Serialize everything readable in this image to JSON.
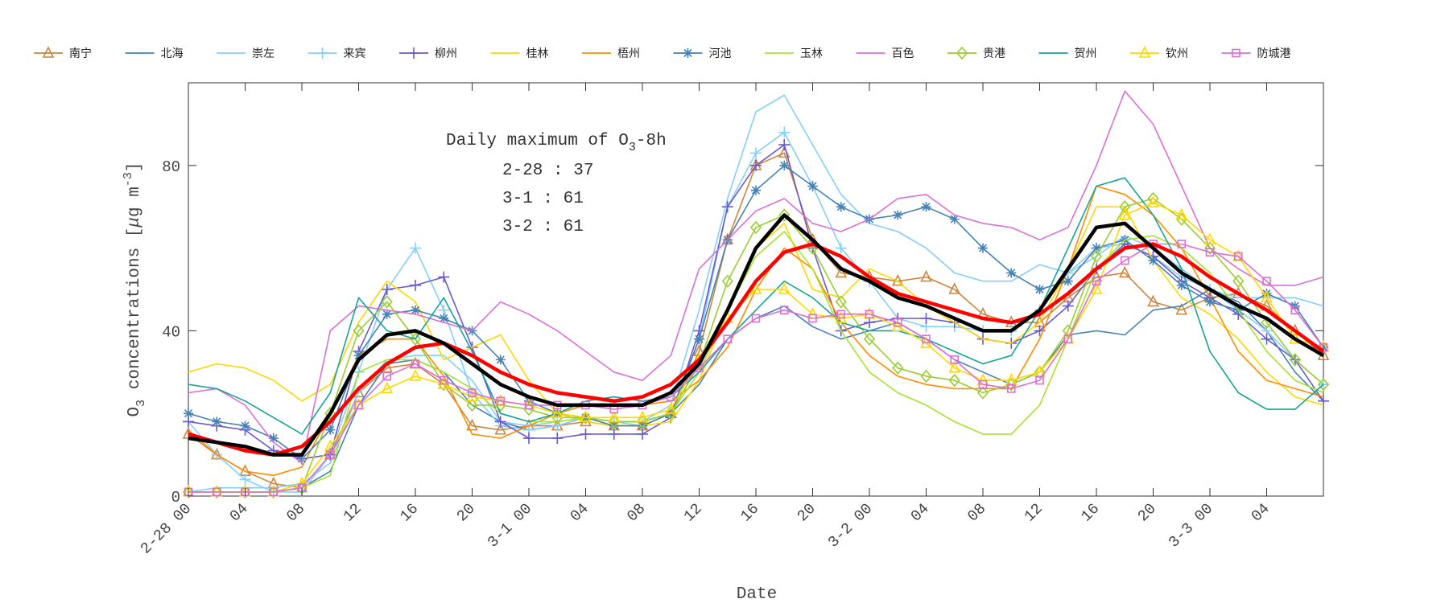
{
  "chart_data": {
    "type": "line",
    "xlabel": "Date",
    "ylabel": "O3 concentrations [μg m-3]",
    "ylabel_parts": {
      "o": "O",
      "sub": "3",
      "mid": " concentrations [",
      "mu": "μ",
      "g": "g m",
      "sup": "-3",
      "end": "]"
    },
    "ylim": [
      0,
      100
    ],
    "yticks": [
      0,
      40,
      80
    ],
    "xticks": [
      "2-28 00",
      "04",
      "08",
      "12",
      "16",
      "20",
      "3-1 00",
      "04",
      "08",
      "12",
      "16",
      "20",
      "3-2 00",
      "04",
      "08",
      "12",
      "16",
      "20",
      "3-3 00",
      "04"
    ],
    "x": [
      "2-28 00",
      "2-28 02",
      "2-28 04",
      "2-28 06",
      "2-28 08",
      "2-28 10",
      "2-28 12",
      "2-28 14",
      "2-28 16",
      "2-28 18",
      "2-28 20",
      "2-28 22",
      "3-1 00",
      "3-1 02",
      "3-1 04",
      "3-1 06",
      "3-1 08",
      "3-1 10",
      "3-1 12",
      "3-1 14",
      "3-1 16",
      "3-1 18",
      "3-1 20",
      "3-1 22",
      "3-2 00",
      "3-2 02",
      "3-2 04",
      "3-2 06",
      "3-2 08",
      "3-2 10",
      "3-2 12",
      "3-2 14",
      "3-2 16",
      "3-2 18",
      "3-2 20",
      "3-2 22",
      "3-3 00",
      "3-3 02",
      "3-3 04",
      "3-3 06",
      "3-3 08"
    ],
    "grid": false,
    "legend": "top",
    "annotation": {
      "title": "Daily maximum of O",
      "title_sub": "3",
      "title_end": "-8h",
      "lines": [
        "2-28 : 37",
        "3-1 : 61",
        "3-2 : 61"
      ]
    },
    "series": [
      {
        "name": "南宁",
        "color": "#CD853F",
        "marker": "triangle",
        "values": [
          15,
          10,
          6,
          3,
          2,
          10,
          25,
          31,
          32,
          27,
          17,
          16,
          17,
          17,
          18,
          17,
          17,
          20,
          35,
          62,
          80,
          83,
          62,
          54,
          53,
          52,
          53,
          50,
          44,
          42,
          42,
          48,
          53,
          54,
          47,
          45,
          48,
          49,
          46,
          40,
          34
        ]
      },
      {
        "name": "北海",
        "color": "#4682B4",
        "marker": "none",
        "values": [
          1,
          1,
          1,
          1,
          2,
          6,
          22,
          32,
          33,
          30,
          22,
          18,
          16,
          17,
          19,
          18,
          18,
          20,
          27,
          38,
          43,
          46,
          41,
          38,
          40,
          42,
          38,
          33,
          30,
          27,
          30,
          39,
          40,
          39,
          45,
          46,
          50,
          47,
          40,
          30,
          23
        ]
      },
      {
        "name": "崇左",
        "color": "#87CEFA",
        "marker": "none",
        "values": [
          1,
          2,
          2,
          2,
          3,
          8,
          25,
          33,
          34,
          34,
          28,
          18,
          17,
          18,
          19,
          18,
          18,
          22,
          45,
          72,
          93,
          97,
          85,
          73,
          66,
          64,
          60,
          54,
          52,
          52,
          56,
          54,
          58,
          63,
          60,
          55,
          50,
          48,
          48,
          48,
          46
        ]
      },
      {
        "name": "来宾",
        "color": "#87CEFA",
        "marker": "plus",
        "values": [
          18,
          10,
          4,
          1,
          1,
          10,
          30,
          50,
          60,
          45,
          25,
          17,
          16,
          17,
          19,
          18,
          17,
          20,
          38,
          70,
          83,
          88,
          75,
          60,
          52,
          43,
          41,
          41,
          40,
          40,
          45,
          54,
          60,
          61,
          58,
          53,
          50,
          45,
          40,
          33,
          27
        ]
      },
      {
        "name": "柳州",
        "color": "#6A5ACD",
        "marker": "plus",
        "values": [
          18,
          17,
          16,
          11,
          9,
          10,
          35,
          50,
          51,
          53,
          36,
          18,
          14,
          14,
          15,
          15,
          15,
          19,
          40,
          70,
          80,
          85,
          60,
          40,
          42,
          43,
          43,
          42,
          38,
          37,
          40,
          46,
          55,
          61,
          58,
          52,
          48,
          44,
          38,
          33,
          23
        ]
      },
      {
        "name": "桂林",
        "color": "#FFD700",
        "marker": "none",
        "values": [
          30,
          32,
          31,
          28,
          23,
          27,
          42,
          52,
          47,
          33,
          36,
          39,
          28,
          20,
          18,
          17,
          17,
          18,
          28,
          45,
          60,
          66,
          50,
          48,
          55,
          52,
          46,
          42,
          38,
          37,
          42,
          55,
          70,
          70,
          57,
          48,
          44,
          38,
          30,
          24,
          22
        ]
      },
      {
        "name": "梧州",
        "color": "#FF8C00",
        "marker": "none",
        "values": [
          16,
          10,
          6,
          5,
          7,
          20,
          34,
          38,
          38,
          29,
          15,
          14,
          17,
          20,
          22,
          22,
          22,
          23,
          28,
          36,
          50,
          60,
          55,
          42,
          34,
          29,
          27,
          26,
          26,
          26,
          38,
          55,
          75,
          73,
          68,
          60,
          48,
          35,
          28,
          26,
          24
        ]
      },
      {
        "name": "河池",
        "color": "#4682B4",
        "marker": "star",
        "values": [
          20,
          18,
          17,
          14,
          9,
          16,
          34,
          44,
          45,
          43,
          40,
          33,
          23,
          20,
          19,
          17,
          17,
          20,
          38,
          62,
          74,
          80,
          75,
          70,
          67,
          68,
          70,
          67,
          60,
          54,
          50,
          52,
          60,
          62,
          57,
          51,
          47,
          45,
          49,
          46,
          36
        ]
      },
      {
        "name": "玉林",
        "color": "#A6E22E",
        "marker": "none",
        "values": [
          1,
          1,
          1,
          1,
          2,
          5,
          30,
          33,
          33,
          30,
          26,
          20,
          18,
          18,
          19,
          18,
          18,
          20,
          30,
          45,
          58,
          64,
          55,
          40,
          30,
          25,
          22,
          18,
          15,
          15,
          22,
          38,
          55,
          62,
          63,
          60,
          54,
          45,
          35,
          28,
          25
        ]
      },
      {
        "name": "百色",
        "color": "#DA70D6",
        "marker": "none",
        "values": [
          25,
          26,
          22,
          13,
          8,
          40,
          46,
          45,
          44,
          42,
          40,
          47,
          44,
          40,
          35,
          30,
          28,
          34,
          55,
          62,
          69,
          72,
          66,
          64,
          67,
          72,
          73,
          68,
          66,
          65,
          62,
          65,
          80,
          98,
          90,
          75,
          60,
          55,
          51,
          51,
          53
        ]
      },
      {
        "name": "贵港",
        "color": "#9ACD32",
        "marker": "diamond",
        "values": [
          1,
          1,
          1,
          1,
          2,
          20,
          40,
          47,
          38,
          27,
          22,
          22,
          21,
          19,
          19,
          18,
          18,
          20,
          32,
          52,
          65,
          68,
          60,
          47,
          38,
          31,
          29,
          28,
          25,
          27,
          30,
          40,
          58,
          70,
          72,
          67,
          60,
          52,
          42,
          33,
          27
        ]
      },
      {
        "name": "贺州",
        "color": "#17A398",
        "marker": "none",
        "values": [
          27,
          26,
          23,
          19,
          15,
          25,
          48,
          40,
          38,
          48,
          35,
          20,
          18,
          20,
          23,
          24,
          23,
          24,
          30,
          38,
          45,
          52,
          48,
          42,
          40,
          40,
          38,
          35,
          32,
          34,
          45,
          60,
          75,
          77,
          68,
          55,
          35,
          25,
          21,
          21,
          27
        ]
      },
      {
        "name": "钦州",
        "color": "#FFD700",
        "marker": "triangle",
        "values": [
          1,
          1,
          1,
          1,
          3,
          12,
          22,
          26,
          29,
          27,
          24,
          23,
          22,
          20,
          19,
          19,
          19,
          21,
          33,
          43,
          50,
          50,
          44,
          43,
          44,
          41,
          37,
          31,
          28,
          28,
          30,
          38,
          50,
          68,
          71,
          68,
          62,
          58,
          48,
          38,
          36
        ]
      },
      {
        "name": "防城港",
        "color": "#DA70D6",
        "marker": "square",
        "values": [
          1,
          1,
          1,
          1,
          2,
          10,
          22,
          29,
          32,
          28,
          25,
          23,
          22,
          22,
          22,
          21,
          22,
          24,
          31,
          38,
          43,
          45,
          43,
          44,
          44,
          42,
          38,
          33,
          27,
          26,
          28,
          38,
          52,
          57,
          61,
          61,
          59,
          58,
          52,
          45,
          36
        ]
      },
      {
        "color": "#FF0000",
        "marker": "none",
        "thick": true,
        "values": [
          15,
          13,
          11,
          10,
          12,
          18,
          26,
          32,
          36,
          37,
          34,
          30,
          27,
          25,
          24,
          23,
          24,
          27,
          33,
          42,
          52,
          59,
          61,
          58,
          53,
          49,
          47,
          45,
          43,
          42,
          44,
          49,
          55,
          60,
          61,
          58,
          53,
          49,
          45,
          40,
          35
        ]
      },
      {
        "color": "#000000",
        "marker": "none",
        "thick": true,
        "values": [
          14,
          13,
          12,
          10,
          10,
          20,
          33,
          39,
          40,
          37,
          32,
          27,
          24,
          22,
          22,
          22,
          22,
          25,
          32,
          45,
          60,
          68,
          62,
          55,
          52,
          48,
          46,
          43,
          40,
          40,
          45,
          55,
          65,
          66,
          60,
          54,
          50,
          46,
          43,
          38,
          34
        ]
      }
    ]
  }
}
